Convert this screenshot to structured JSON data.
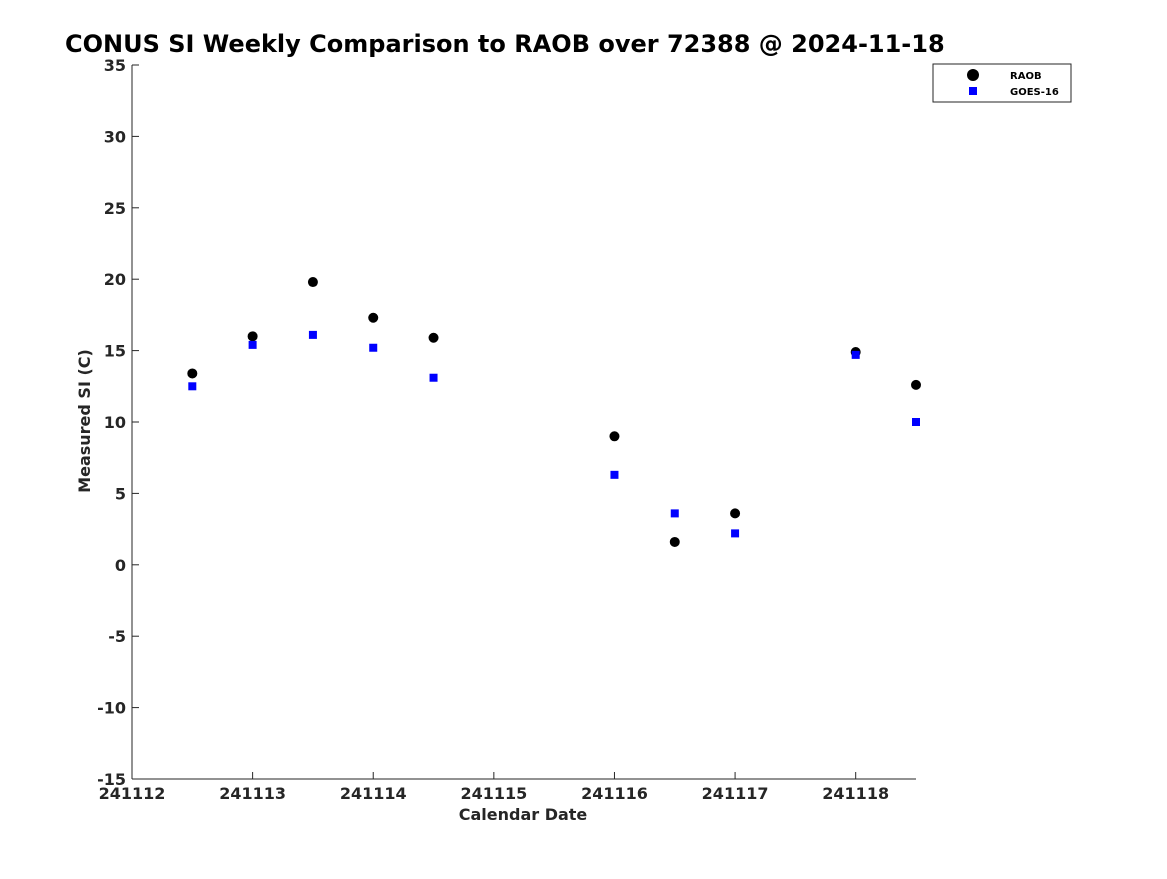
{
  "chart_data": {
    "type": "scatter",
    "title": "CONUS SI Weekly Comparison to RAOB over 72388 @ 2024-11-18",
    "xlabel": "Calendar Date",
    "ylabel": "Measured SI (C)",
    "xlim": [
      241112,
      241118.5
    ],
    "ylim": [
      -15,
      35
    ],
    "x_ticks": [
      241112,
      241113,
      241114,
      241115,
      241116,
      241117,
      241118
    ],
    "x_tick_labels": [
      "241112",
      "241113",
      "241114",
      "241115",
      "241116",
      "241117",
      "241118"
    ],
    "y_ticks": [
      -15,
      -10,
      -5,
      0,
      5,
      10,
      15,
      20,
      25,
      30,
      35
    ],
    "y_tick_labels": [
      "-15",
      "-10",
      "-5",
      "0",
      "5",
      "10",
      "15",
      "20",
      "25",
      "30",
      "35"
    ],
    "grid": false,
    "legend_position": "top-right",
    "series": [
      {
        "name": "RAOB",
        "marker": "circle",
        "color": "#000000",
        "points": [
          {
            "x": 241112.5,
            "y": 13.4
          },
          {
            "x": 241113.0,
            "y": 16.0
          },
          {
            "x": 241113.5,
            "y": 19.8
          },
          {
            "x": 241114.0,
            "y": 17.3
          },
          {
            "x": 241114.5,
            "y": 15.9
          },
          {
            "x": 241116.0,
            "y": 9.0
          },
          {
            "x": 241116.5,
            "y": 1.6
          },
          {
            "x": 241117.0,
            "y": 3.6
          },
          {
            "x": 241118.0,
            "y": 14.9
          },
          {
            "x": 241118.5,
            "y": 12.6
          }
        ]
      },
      {
        "name": "GOES-16",
        "marker": "square",
        "color": "#0000ff",
        "points": [
          {
            "x": 241112.5,
            "y": 12.5
          },
          {
            "x": 241113.0,
            "y": 15.4
          },
          {
            "x": 241113.5,
            "y": 16.1
          },
          {
            "x": 241114.0,
            "y": 15.2
          },
          {
            "x": 241114.5,
            "y": 13.1
          },
          {
            "x": 241116.0,
            "y": 6.3
          },
          {
            "x": 241116.5,
            "y": 3.6
          },
          {
            "x": 241117.0,
            "y": 2.2
          },
          {
            "x": 241118.0,
            "y": 14.7
          },
          {
            "x": 241118.5,
            "y": 10.0
          }
        ]
      }
    ]
  }
}
